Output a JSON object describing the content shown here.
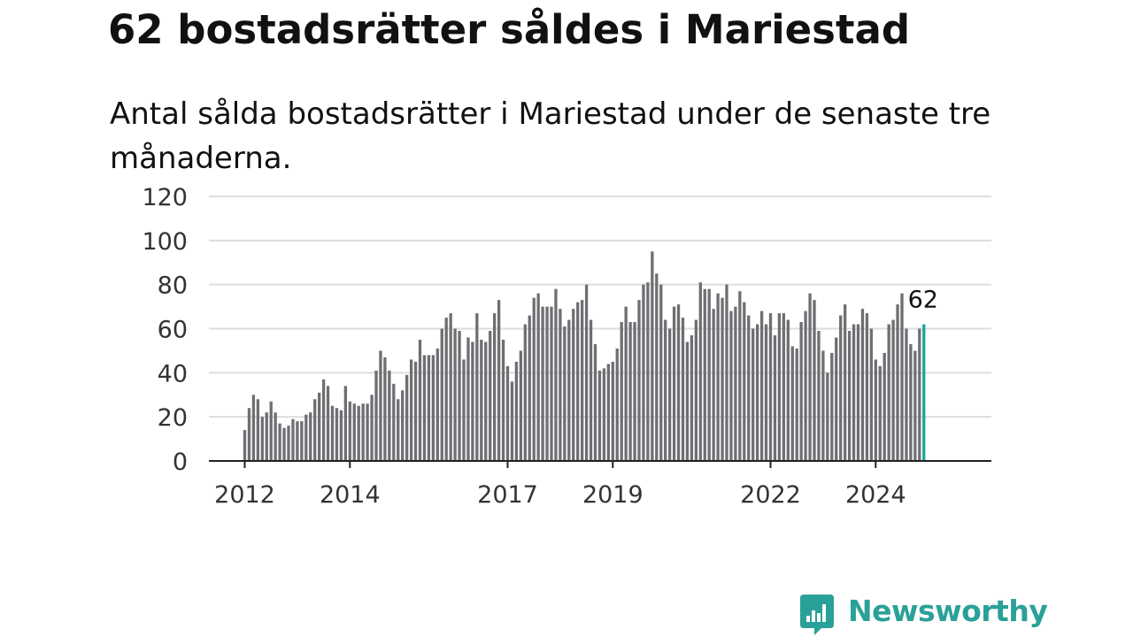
{
  "title": "62 bostadsrätter såldes i Mariestad",
  "subtitle": "Antal sålda bostadsrätter i Mariestad under de senaste tre månaderna.",
  "brand": {
    "name": "Newsworthy",
    "color": "#2aa198",
    "icon": "newsworthy-logo-icon"
  },
  "colors": {
    "bar": "#6e6e73",
    "highlight": "#1aa59a",
    "grid": "#dddddd",
    "axis": "#222222",
    "text": "#333333"
  },
  "chart_data": {
    "type": "bar",
    "title": "62 bostadsrätter såldes i Mariestad",
    "subtitle": "Antal sålda bostadsrätter i Mariestad under de senaste tre månaderna.",
    "xlabel": "",
    "ylabel": "",
    "ylim": [
      0,
      120
    ],
    "yticks": [
      0,
      20,
      40,
      60,
      80,
      100,
      120
    ],
    "xtick_labels": [
      "2012",
      "2014",
      "2017",
      "2019",
      "2022",
      "2024"
    ],
    "x_start": "2012-01",
    "frequency": "monthly",
    "grid": true,
    "legend": "none",
    "highlight_last": true,
    "highlight_label": "62",
    "values": [
      14,
      24,
      30,
      28,
      20,
      22,
      27,
      22,
      17,
      15,
      16,
      19,
      18,
      18,
      21,
      22,
      28,
      31,
      37,
      34,
      25,
      24,
      23,
      34,
      27,
      26,
      25,
      26,
      26,
      30,
      41,
      50,
      47,
      41,
      35,
      28,
      32,
      39,
      46,
      45,
      55,
      48,
      48,
      48,
      51,
      60,
      65,
      67,
      60,
      59,
      46,
      56,
      54,
      67,
      55,
      54,
      59,
      67,
      73,
      55,
      43,
      36,
      45,
      50,
      62,
      66,
      74,
      76,
      70,
      70,
      70,
      78,
      69,
      61,
      64,
      69,
      72,
      73,
      80,
      64,
      53,
      41,
      42,
      44,
      45,
      51,
      63,
      70,
      63,
      63,
      73,
      80,
      81,
      95,
      85,
      80,
      64,
      60,
      70,
      71,
      65,
      54,
      57,
      64,
      81,
      78,
      78,
      69,
      76,
      74,
      80,
      68,
      70,
      77,
      72,
      66,
      60,
      62,
      68,
      62,
      67,
      57,
      67,
      67,
      64,
      52,
      51,
      63,
      68,
      76,
      73,
      59,
      50,
      40,
      49,
      56,
      66,
      71,
      59,
      62,
      62,
      69,
      67,
      60,
      46,
      43,
      49,
      62,
      64,
      71,
      76,
      60,
      53,
      50,
      60,
      62
    ]
  }
}
